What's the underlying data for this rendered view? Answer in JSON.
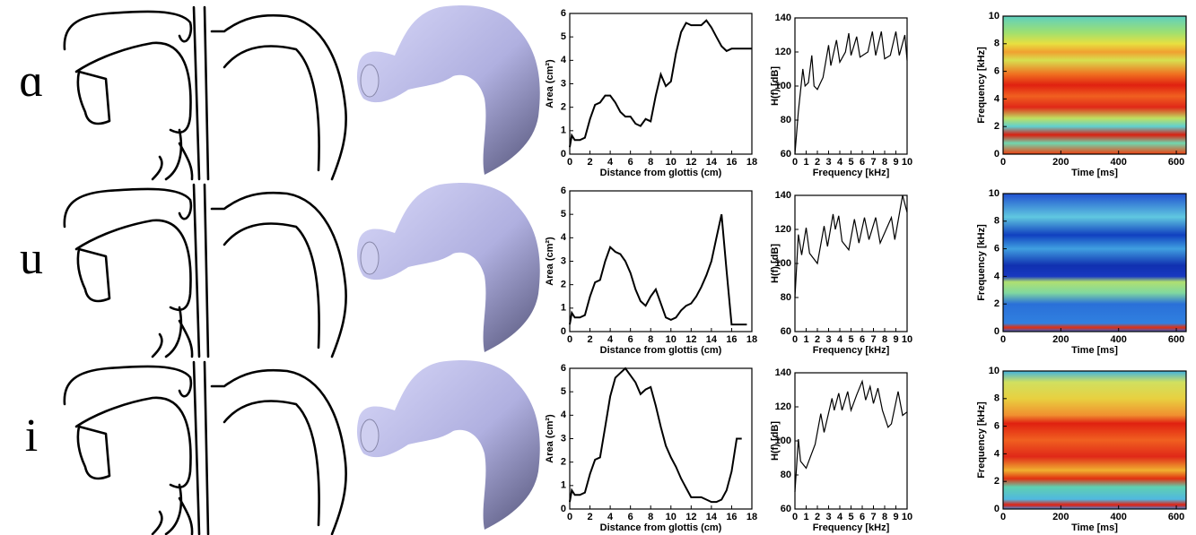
{
  "rows": [
    {
      "label": "ɑ"
    },
    {
      "label": "u"
    },
    {
      "label": "i"
    }
  ],
  "chart_data": [
    {
      "type": "line",
      "xlabel": "Distance from glottis (cm)",
      "ylabel": "Area (cm²)",
      "color": "#000000",
      "x": [
        0,
        0.2,
        0.5,
        1,
        1.5,
        2,
        2.5,
        3,
        3.5,
        4,
        4.5,
        5,
        5.5,
        6,
        6.5,
        7,
        7.5,
        8,
        8.5,
        9,
        9.5,
        10,
        10.5,
        11,
        11.5,
        12,
        12.5,
        13,
        13.5,
        14,
        14.5,
        15,
        15.5,
        16,
        16.5,
        17,
        17.5,
        18
      ],
      "values": [
        0.3,
        0.8,
        0.6,
        0.6,
        0.7,
        1.5,
        2.1,
        2.2,
        2.5,
        2.5,
        2.2,
        1.8,
        1.6,
        1.6,
        1.3,
        1.2,
        1.5,
        1.4,
        2.5,
        3.4,
        2.9,
        3.1,
        4.3,
        5.2,
        5.6,
        5.5,
        5.5,
        5.5,
        5.7,
        5.4,
        5,
        4.6,
        4.4,
        4.5,
        4.5,
        4.5,
        4.5,
        4.5
      ],
      "xlim": [
        0,
        18
      ],
      "ylim": [
        0,
        6
      ],
      "xticks": [
        0,
        2,
        4,
        6,
        8,
        10,
        12,
        14,
        16,
        18
      ],
      "yticks": [
        0,
        1,
        2,
        3,
        4,
        5,
        6
      ]
    },
    {
      "type": "line",
      "xlabel": "Frequency [kHz]",
      "ylabel": "H(f) [dB]",
      "color": "#000000",
      "x": [
        0,
        0.3,
        0.7,
        0.9,
        1.2,
        1.5,
        1.7,
        2,
        2.5,
        3,
        3.2,
        3.7,
        4,
        4.5,
        4.8,
        5,
        5.5,
        5.8,
        6.5,
        6.9,
        7.2,
        7.7,
        8,
        8.5,
        9,
        9.3,
        9.8,
        10
      ],
      "values": [
        60,
        85,
        110,
        100,
        102,
        118,
        100,
        98,
        105,
        124,
        112,
        127,
        114,
        120,
        131,
        118,
        129,
        117,
        120,
        132,
        118,
        132,
        116,
        118,
        132,
        118,
        130,
        115
      ],
      "xlim": [
        0,
        10
      ],
      "ylim": [
        60,
        140
      ],
      "xticks": [
        0,
        1,
        2,
        3,
        4,
        5,
        6,
        7,
        8,
        9,
        10
      ],
      "yticks": [
        60,
        80,
        100,
        120,
        140
      ]
    },
    {
      "type": "spectrogram",
      "xlabel": "Time [ms]",
      "ylabel": "Frequency [kHz]",
      "xlim": [
        0,
        634
      ],
      "ylim": [
        0,
        10
      ],
      "xticks": [
        0,
        200,
        400,
        600
      ],
      "yticks": [
        0,
        2,
        4,
        6,
        8,
        10
      ]
    },
    {
      "type": "line",
      "xlabel": "Distance from glottis (cm)",
      "ylabel": "Area (cm²)",
      "color": "#000000",
      "x": [
        0,
        0.2,
        0.5,
        1,
        1.5,
        2,
        2.5,
        3,
        3.5,
        4,
        4.5,
        5,
        5.5,
        6,
        6.5,
        7,
        7.5,
        8,
        8.5,
        9,
        9.5,
        10,
        10.5,
        11,
        11.5,
        12,
        12.5,
        13,
        13.5,
        14,
        14.5,
        15,
        15.5,
        16,
        16.5,
        17,
        17.5
      ],
      "values": [
        0.3,
        0.8,
        0.6,
        0.6,
        0.7,
        1.5,
        2.1,
        2.2,
        3,
        3.6,
        3.4,
        3.3,
        3,
        2.5,
        1.8,
        1.3,
        1.1,
        1.5,
        1.8,
        1.2,
        0.6,
        0.5,
        0.6,
        0.9,
        1.1,
        1.2,
        1.5,
        1.9,
        2.4,
        3,
        4,
        5,
        2.6,
        0.3,
        0.3,
        0.3,
        0.3
      ],
      "xlim": [
        0,
        18
      ],
      "ylim": [
        0,
        6
      ],
      "xticks": [
        0,
        2,
        4,
        6,
        8,
        10,
        12,
        14,
        16,
        18
      ],
      "yticks": [
        0,
        1,
        2,
        3,
        4,
        5,
        6
      ]
    },
    {
      "type": "line",
      "xlabel": "Frequency [kHz]",
      "ylabel": "H(f) [dB]",
      "color": "#000000",
      "x": [
        0,
        0.3,
        0.6,
        1,
        1.3,
        2,
        2.6,
        2.9,
        3.4,
        3.6,
        3.9,
        4.2,
        4.8,
        5.3,
        5.7,
        6.2,
        6.6,
        7.2,
        7.6,
        8.6,
        8.9,
        9.6,
        10
      ],
      "values": [
        80,
        117,
        105,
        121,
        106,
        100,
        122,
        110,
        129,
        120,
        128,
        113,
        108,
        126,
        112,
        127,
        114,
        127,
        112,
        127,
        114,
        140,
        130
      ],
      "xlim": [
        0,
        10
      ],
      "ylim": [
        60,
        140
      ],
      "xticks": [
        0,
        1,
        2,
        3,
        4,
        5,
        6,
        7,
        8,
        9,
        10
      ],
      "yticks": [
        60,
        80,
        100,
        120,
        140
      ]
    },
    {
      "type": "spectrogram",
      "xlabel": "Time [ms]",
      "ylabel": "Frequency [kHz]",
      "xlim": [
        0,
        634
      ],
      "ylim": [
        0,
        10
      ],
      "xticks": [
        0,
        200,
        400,
        600
      ],
      "yticks": [
        0,
        2,
        4,
        6,
        8,
        10
      ]
    },
    {
      "type": "line",
      "xlabel": "Distance from glottis (cm)",
      "ylabel": "Area (cm²)",
      "color": "#000000",
      "x": [
        0,
        0.2,
        0.5,
        1,
        1.5,
        2,
        2.5,
        3,
        3.5,
        4,
        4.5,
        5,
        5.5,
        6,
        6.5,
        7,
        7.5,
        8,
        8.5,
        9,
        9.5,
        10,
        10.5,
        11,
        11.5,
        12,
        12.5,
        13,
        13.5,
        14,
        14.5,
        15,
        15.5,
        16,
        16.5,
        17
      ],
      "values": [
        0.3,
        0.8,
        0.6,
        0.6,
        0.7,
        1.5,
        2.1,
        2.2,
        3.5,
        4.8,
        5.6,
        5.8,
        6,
        5.7,
        5.4,
        4.9,
        5.1,
        5.2,
        4.4,
        3.5,
        2.7,
        2.2,
        1.8,
        1.3,
        0.9,
        0.5,
        0.5,
        0.5,
        0.4,
        0.3,
        0.3,
        0.4,
        0.8,
        1.6,
        3,
        3
      ],
      "xlim": [
        0,
        18
      ],
      "ylim": [
        0,
        6
      ],
      "xticks": [
        0,
        2,
        4,
        6,
        8,
        10,
        12,
        14,
        16,
        18
      ],
      "yticks": [
        0,
        1,
        2,
        3,
        4,
        5,
        6
      ]
    },
    {
      "type": "line",
      "xlabel": "Frequency [kHz]",
      "ylabel": "H(f) [dB]",
      "color": "#000000",
      "x": [
        0,
        0.3,
        0.5,
        1,
        1.8,
        2.3,
        2.6,
        3.3,
        3.5,
        3.9,
        4.2,
        4.7,
        5,
        5.5,
        6,
        6.3,
        6.7,
        7,
        7.4,
        7.8,
        8.3,
        8.6,
        9.2,
        9.6,
        10
      ],
      "values": [
        70,
        101,
        88,
        84,
        98,
        116,
        105,
        125,
        118,
        128,
        118,
        129,
        118,
        127,
        135,
        124,
        132,
        122,
        131,
        118,
        108,
        110,
        129,
        115,
        117
      ],
      "xlim": [
        0,
        10
      ],
      "ylim": [
        60,
        140
      ],
      "xticks": [
        0,
        1,
        2,
        3,
        4,
        5,
        6,
        7,
        8,
        9,
        10
      ],
      "yticks": [
        60,
        80,
        100,
        120,
        140
      ]
    },
    {
      "type": "spectrogram",
      "xlabel": "Time [ms]",
      "ylabel": "Frequency [kHz]",
      "xlim": [
        0,
        634
      ],
      "ylim": [
        0,
        10
      ],
      "xticks": [
        0,
        200,
        400,
        600
      ],
      "yticks": [
        0,
        2,
        4,
        6,
        8,
        10
      ]
    }
  ]
}
